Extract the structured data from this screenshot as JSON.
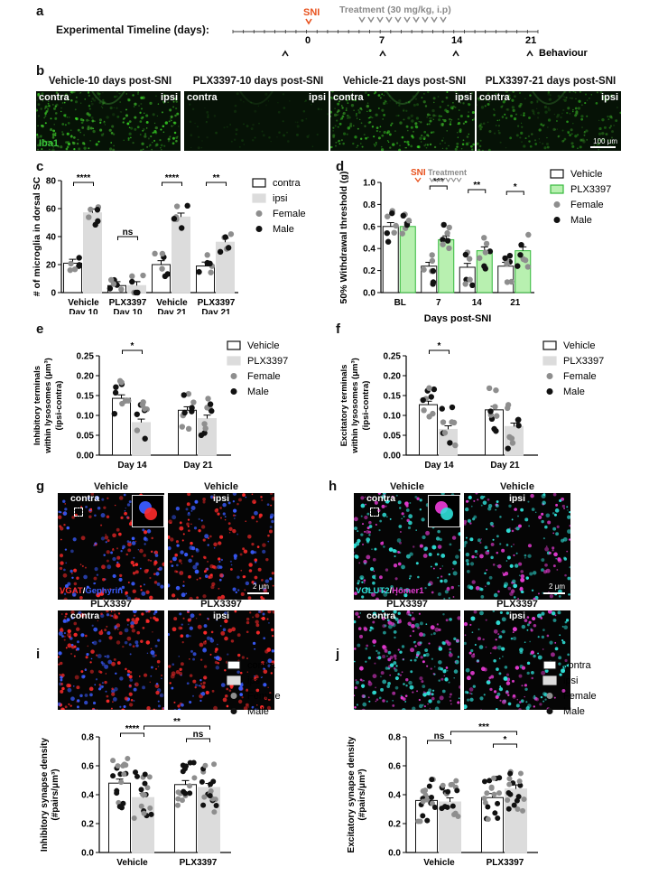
{
  "panels": {
    "a": "a",
    "b": "b",
    "c": "c",
    "d": "d",
    "e": "e",
    "f": "f",
    "g": "g",
    "h": "h",
    "i": "i",
    "j": "j"
  },
  "timeline": {
    "label": "Experimental Timeline (days):",
    "sni": "SNI",
    "treatment": "Treatment (30 mg/kg, i.p)",
    "ticks": [
      "0",
      "7",
      "14",
      "21"
    ],
    "behaviour": "Behaviour",
    "colors": {
      "sni": "#e8531f",
      "treatment": "#8a8a8a"
    }
  },
  "panel_b": {
    "titles": [
      "Vehicle-10 days post-SNI",
      "PLX3397-10 days post-SNI",
      "Vehicle-21 days post-SNI",
      "PLX3397-21 days post-SNI"
    ],
    "contra": "contra",
    "ipsi": "ipsi",
    "stain": "Iba1",
    "scale": "100 μm"
  },
  "legends": {
    "contra_ipsi": [
      "contra",
      "ipsi",
      "Female",
      "Male"
    ],
    "vehicle_plx": [
      "Vehicle",
      "PLX3397",
      "Female",
      "Male"
    ]
  },
  "panel_g": {
    "titles": [
      "Vehicle",
      "Vehicle",
      "PLX3397",
      "PLX3397"
    ],
    "sides": [
      "contra",
      "ipsi",
      "contra",
      "ipsi"
    ],
    "stain_a": "VGAT",
    "stain_b": "Gephyrin",
    "slash": "/",
    "scale": "2 μm"
  },
  "panel_h": {
    "titles": [
      "Vehicle",
      "Vehicle",
      "PLX3397",
      "PLX3397"
    ],
    "sides": [
      "contra",
      "ipsi",
      "contra",
      "ipsi"
    ],
    "stain_a": "VGLUT2",
    "stain_b": "Homer1",
    "slash": "/",
    "scale": "2 μm"
  },
  "chart_data": [
    {
      "panel": "c",
      "type": "bar",
      "ylabel": "# of microglia in dorsal SC",
      "ylim": [
        0,
        80
      ],
      "yticks": [
        "0",
        "20",
        "40",
        "60",
        "80"
      ],
      "categories": [
        "Vehicle Day 10",
        "PLX3397 Day 10",
        "Vehicle Day 21",
        "PLX3397 Day 21"
      ],
      "series": [
        {
          "name": "contra",
          "values": [
            21,
            5,
            20,
            19
          ]
        },
        {
          "name": "ipsi",
          "values": [
            57,
            5,
            54,
            36
          ]
        }
      ],
      "significance": [
        "****",
        "ns",
        "****",
        "**"
      ]
    },
    {
      "panel": "d",
      "type": "bar",
      "ylabel": "50% Withdrawal threshold (g)",
      "xlabel": "Days post-SNI",
      "ylim": [
        0,
        1.0
      ],
      "yticks": [
        "0.0",
        "0.2",
        "0.4",
        "0.6",
        "0.8",
        "1.0"
      ],
      "categories": [
        "BL",
        "7",
        "14",
        "21"
      ],
      "series": [
        {
          "name": "Vehicle",
          "values": [
            0.6,
            0.24,
            0.23,
            0.24
          ]
        },
        {
          "name": "PLX3397",
          "values": [
            0.6,
            0.48,
            0.38,
            0.38
          ]
        }
      ],
      "significance": [
        "",
        "***",
        "**",
        "*"
      ],
      "annotations": [
        "SNI",
        "Treatment"
      ]
    },
    {
      "panel": "e",
      "type": "bar",
      "ylabel": "Inhibitory terminals within lysosomes (μm³) (ipsi-contra)",
      "ylim": [
        0,
        0.25
      ],
      "yticks": [
        "0.00",
        "0.05",
        "0.10",
        "0.15",
        "0.20",
        "0.25"
      ],
      "categories": [
        "Day 14",
        "Day 21"
      ],
      "series": [
        {
          "name": "Vehicle",
          "values": [
            0.143,
            0.113
          ]
        },
        {
          "name": "PLX3397",
          "values": [
            0.082,
            0.092
          ]
        }
      ],
      "significance": [
        "*",
        ""
      ]
    },
    {
      "panel": "f",
      "type": "bar",
      "ylabel": "Excitatory terminals within lysosomes (μm³) (ipsi-contra)",
      "ylim": [
        0,
        0.25
      ],
      "yticks": [
        "0.00",
        "0.05",
        "0.10",
        "0.15",
        "0.20",
        "0.25"
      ],
      "categories": [
        "Day 14",
        "Day 21"
      ],
      "series": [
        {
          "name": "Vehicle",
          "values": [
            0.127,
            0.114
          ]
        },
        {
          "name": "PLX3397",
          "values": [
            0.065,
            0.072
          ]
        }
      ],
      "significance": [
        "*",
        ""
      ]
    },
    {
      "panel": "i",
      "type": "bar",
      "ylabel": "Inhibitory synapse density (#pairs/μm³)",
      "ylim": [
        0,
        0.8
      ],
      "yticks": [
        "0.0",
        "0.2",
        "0.4",
        "0.6",
        "0.8"
      ],
      "categories": [
        "Vehicle",
        "PLX3397"
      ],
      "series": [
        {
          "name": "contra",
          "values": [
            0.48,
            0.47
          ]
        },
        {
          "name": "ipsi",
          "values": [
            0.38,
            0.45
          ]
        }
      ],
      "significance": [
        "****",
        "ns",
        "**"
      ]
    },
    {
      "panel": "j",
      "type": "bar",
      "ylabel": "Excitatory synapse density (#pairs/μm³)",
      "ylim": [
        0,
        0.8
      ],
      "yticks": [
        "0.0",
        "0.2",
        "0.4",
        "0.6",
        "0.8"
      ],
      "categories": [
        "Vehicle",
        "PLX3397"
      ],
      "series": [
        {
          "name": "contra",
          "values": [
            0.36,
            0.38
          ]
        },
        {
          "name": "ipsi",
          "values": [
            0.35,
            0.44
          ]
        }
      ],
      "significance": [
        "ns",
        "*",
        "***"
      ]
    }
  ]
}
